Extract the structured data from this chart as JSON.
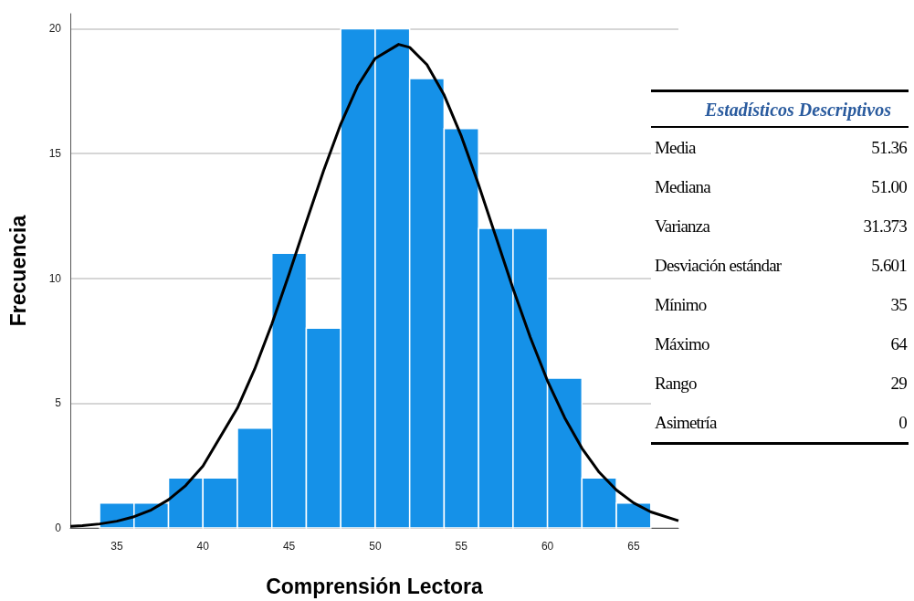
{
  "chart_data": {
    "type": "histogram",
    "xlabel": "Comprensión Lectora",
    "ylabel": "Frecuencia",
    "bins": [
      34,
      36,
      38,
      40,
      42,
      44,
      46,
      48,
      50,
      52,
      54,
      56,
      58,
      60,
      62,
      64,
      66
    ],
    "values": [
      1,
      1,
      2,
      2,
      4,
      11,
      8,
      20,
      20,
      18,
      16,
      12,
      12,
      6,
      2,
      1
    ],
    "color": "#1591e8",
    "series": [
      {
        "type": "line",
        "color": "#000000",
        "x": [
          32.3,
          33,
          34,
          35,
          36,
          37,
          38,
          39,
          40,
          42,
          43,
          44,
          45,
          46,
          47,
          48,
          49,
          50,
          51.36,
          52,
          53,
          54,
          55,
          56,
          57,
          58,
          59,
          60,
          61,
          62,
          63,
          64,
          65,
          66,
          67.6
        ],
        "values": [
          0.06,
          0.09,
          0.16,
          0.27,
          0.45,
          0.72,
          1.13,
          1.7,
          2.48,
          4.8,
          6.36,
          8.17,
          10.17,
          12.26,
          14.31,
          16.18,
          17.73,
          18.81,
          19.37,
          19.25,
          18.56,
          17.34,
          15.69,
          13.75,
          11.67,
          9.59,
          7.64,
          5.89,
          4.41,
          3.19,
          2.23,
          1.52,
          1,
          0.64,
          0.29
        ]
      }
    ],
    "xlim": [
      32.3,
      67.6
    ],
    "xticks": [
      35,
      40,
      45,
      50,
      55,
      60,
      65
    ],
    "ylim": [
      0,
      20.6
    ],
    "yticks": [
      0,
      5,
      10,
      15,
      20
    ],
    "grid": "y",
    "annotations": [
      "Estadísticos Descriptivos",
      "Media",
      "51.36",
      "Mediana",
      "51.00",
      "Varianza",
      "31.373",
      "Desviación estándar",
      "5.601",
      "Mínimo",
      "35",
      "Máximo",
      "64",
      "Rango",
      "29",
      "Asimetría",
      "0"
    ]
  }
}
